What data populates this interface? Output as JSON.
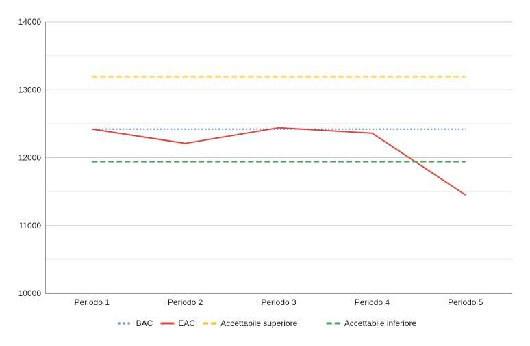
{
  "chart_data": {
    "type": "line",
    "title": "",
    "xlabel": "",
    "ylabel": "",
    "categories": [
      "Periodo 1",
      "Periodo 2",
      "Periodo 3",
      "Periodo 4",
      "Periodo 5"
    ],
    "ylim": [
      10000,
      14000
    ],
    "yticks": [
      "10000",
      "11000",
      "12000",
      "13000",
      "14000"
    ],
    "grid": true,
    "legend_position": "bottom",
    "series": [
      {
        "name": "BAC",
        "values": [
          12420,
          12420,
          12420,
          12420,
          12420
        ],
        "color": "#4285f4",
        "dash": "dotted"
      },
      {
        "name": "EAC",
        "values": [
          12420,
          12210,
          12440,
          12360,
          11450
        ],
        "color": "#ea4335",
        "dash": "solid"
      },
      {
        "name": "Accettabile superiore",
        "values": [
          13190,
          13190,
          13190,
          13190,
          13190
        ],
        "color": "#fbbc04",
        "dash": "dashed"
      },
      {
        "name": "Accettabile inferiore",
        "values": [
          11940,
          11940,
          11940,
          11940,
          11940
        ],
        "color": "#34a853",
        "dash": "dashed"
      }
    ]
  }
}
